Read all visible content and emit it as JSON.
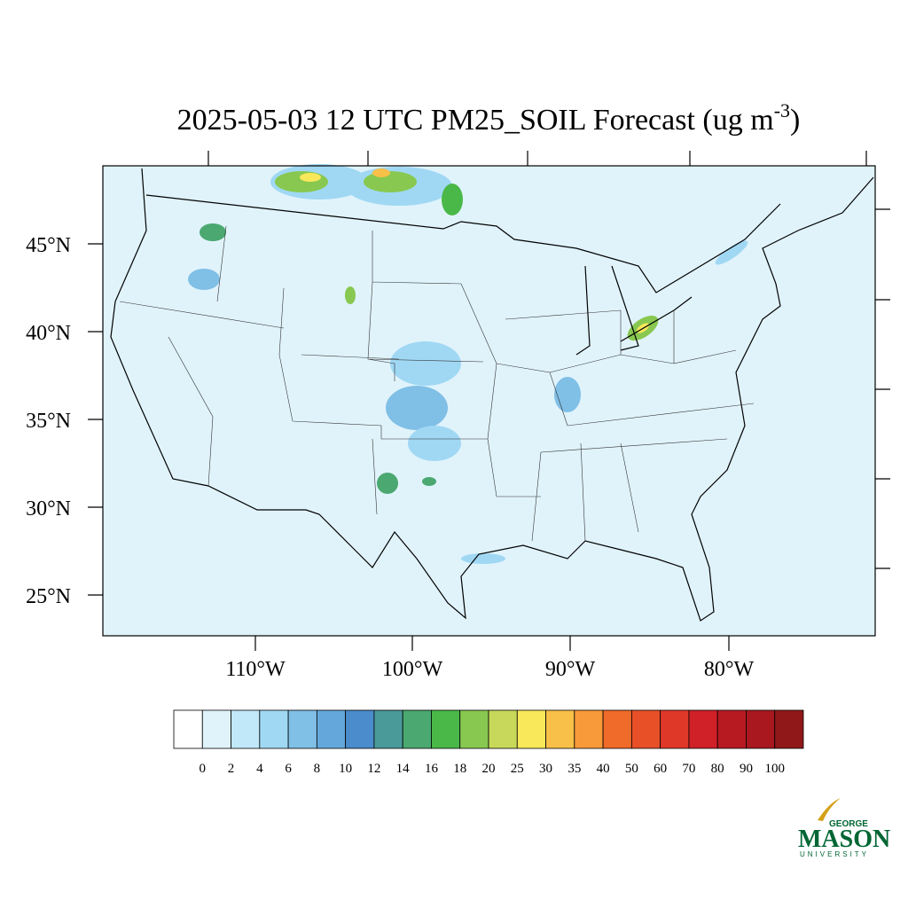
{
  "title": {
    "main": "2025-05-03 12 UTC PM25_SOIL Forecast (ug m",
    "superscript": "-3",
    "end": ")"
  },
  "map": {
    "lat_labels": [
      "45°N",
      "40°N",
      "35°N",
      "30°N",
      "25°N"
    ],
    "lon_labels": [
      "110°W",
      "100°W",
      "90°W",
      "80°W"
    ]
  },
  "colorbar": {
    "levels": [
      0,
      2,
      4,
      6,
      8,
      10,
      12,
      14,
      16,
      18,
      20,
      25,
      30,
      35,
      40,
      50,
      60,
      70,
      80,
      90,
      100
    ],
    "colors": [
      "#ffffff",
      "#e0f3fb",
      "#c0e8f8",
      "#a0d8f4",
      "#80bfe6",
      "#64a8db",
      "#4a8ccc",
      "#4a9a9a",
      "#4aa870",
      "#4ab848",
      "#88c850",
      "#c8d85a",
      "#f8e85a",
      "#f8c048",
      "#f89a3a",
      "#f06a2a",
      "#e85028",
      "#e03828",
      "#d02028",
      "#b81a22",
      "#a8181e",
      "#901818"
    ]
  },
  "logo": {
    "top": "GEORGE",
    "name": "MASON",
    "bottom": "UNIVERSITY"
  }
}
